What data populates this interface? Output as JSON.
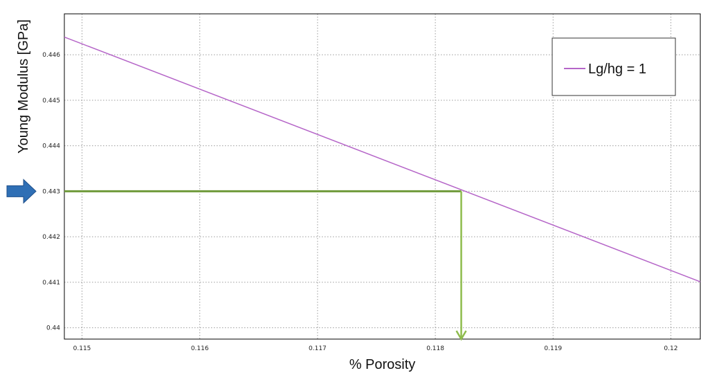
{
  "chart_data": {
    "type": "line",
    "title": "",
    "xlabel": "% Porosity",
    "ylabel": "Young Modulus [GPa]",
    "xlim": [
      0.11485,
      0.12025
    ],
    "ylim": [
      0.43975,
      0.4469
    ],
    "x_ticks": [
      0.115,
      0.116,
      0.117,
      0.118,
      0.119,
      0.12
    ],
    "x_tick_labels": [
      "0.115",
      "0.116",
      "0.117",
      "0.118",
      "0.119",
      "0.12"
    ],
    "y_ticks": [
      0.44,
      0.441,
      0.442,
      0.443,
      0.444,
      0.445,
      0.446
    ],
    "y_tick_labels": [
      "0.44",
      "0.441",
      "0.442",
      "0.443",
      "0.444",
      "0.445",
      "0.446"
    ],
    "grid": true,
    "legend_position": "top-right",
    "series": [
      {
        "name": "Lg/hg = 1",
        "color": "#b565c8",
        "x": [
          0.11485,
          0.12025
        ],
        "y": [
          0.44639,
          0.44101
        ]
      }
    ],
    "annotations": {
      "target_y": 0.443,
      "target_x": 0.11822,
      "guide_color": "#6f9a3a",
      "arrow_color": "#2f6fb5",
      "down_arrow_color": "#8dbb4c"
    }
  }
}
